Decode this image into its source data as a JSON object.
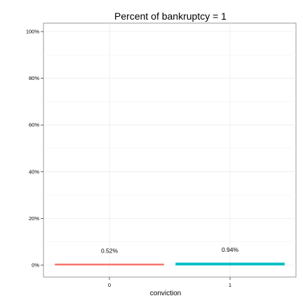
{
  "chart_data": {
    "type": "bar",
    "title": "Percent of bankruptcy = 1",
    "xlabel": "conviction",
    "ylabel": "",
    "categories": [
      "0",
      "1"
    ],
    "values": [
      0.52,
      0.94
    ],
    "data_labels": [
      "0.52%",
      "0.94%"
    ],
    "ylim": [
      -2.5,
      105
    ],
    "y_ticks": [
      0,
      20,
      40,
      60,
      80,
      100
    ],
    "y_tick_labels": [
      "0%",
      "20%",
      "40%",
      "60%",
      "80%",
      "100%"
    ],
    "grid": true,
    "legend": "none",
    "colors": [
      "#F8766D",
      "#00BFC4"
    ]
  }
}
